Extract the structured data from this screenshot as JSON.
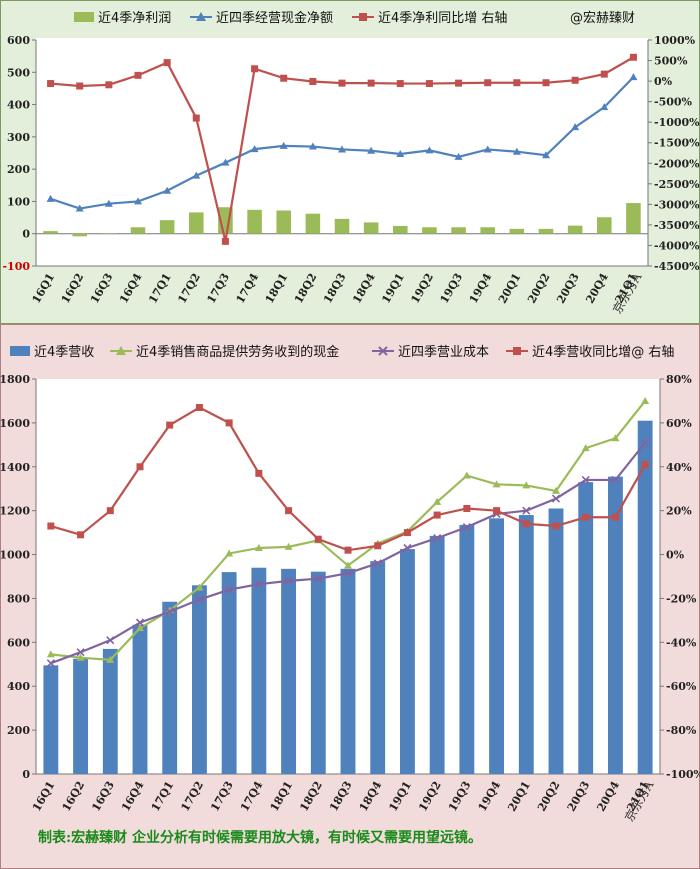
{
  "chart_data": [
    {
      "type": "bar",
      "categories": [
        "16Q1",
        "16Q2",
        "16Q3",
        "16Q4",
        "17Q1",
        "17Q2",
        "17Q3",
        "17Q4",
        "18Q1",
        "18Q2",
        "18Q3",
        "18Q4",
        "19Q1",
        "19Q2",
        "19Q3",
        "19Q4",
        "20Q1",
        "20Q2",
        "20Q3",
        "20Q4",
        "21Q1"
      ],
      "ylim": [
        -100,
        600
      ],
      "yticks": [
        "-100",
        "0",
        "100",
        "200",
        "300",
        "400",
        "500",
        "600"
      ],
      "y2lim": [
        -4500,
        1000
      ],
      "y2ticks": [
        "-4500%",
        "-4000%",
        "-3500%",
        "-3000%",
        "-2500%",
        "-2000%",
        "-1500%",
        "-1000%",
        "-500%",
        "0%",
        "500%",
        "1000%"
      ],
      "legend_position": "top",
      "watermark": "京东方A",
      "grid": false,
      "series": [
        {
          "name": "近4季净利润",
          "kind": "bar",
          "axis": "left",
          "color": "#9bbb59",
          "values": [
            8,
            -8,
            0,
            20,
            42,
            66,
            82,
            74,
            72,
            62,
            46,
            35,
            24,
            20,
            20,
            20,
            15,
            15,
            25,
            51,
            95
          ]
        },
        {
          "name": "近四季经营现金净额",
          "kind": "line",
          "axis": "left",
          "color": "#4f81bd",
          "values": [
            108,
            78,
            93,
            100,
            133,
            180,
            220,
            262,
            272,
            270,
            261,
            257,
            247,
            258,
            238,
            261,
            254,
            243,
            330,
            392,
            485
          ]
        },
        {
          "name": "近4季净利同比增 右轴",
          "kind": "line",
          "axis": "right",
          "color": "#c0504d",
          "values": [
            -60,
            -120,
            -90,
            140,
            450,
            -900,
            -3900,
            300,
            70,
            -10,
            -50,
            -50,
            -60,
            -60,
            -50,
            -40,
            -40,
            -40,
            20,
            170,
            580
          ]
        }
      ],
      "extra_legend": "@宏赫臻财"
    },
    {
      "type": "bar",
      "categories": [
        "16Q1",
        "16Q2",
        "16Q3",
        "16Q4",
        "17Q1",
        "17Q2",
        "17Q3",
        "17Q4",
        "18Q1",
        "18Q2",
        "18Q3",
        "18Q4",
        "19Q1",
        "19Q2",
        "19Q3",
        "19Q4",
        "20Q1",
        "20Q2",
        "20Q3",
        "20Q4",
        "21Q1"
      ],
      "ylim": [
        0,
        1800
      ],
      "yticks": [
        "0",
        "200",
        "400",
        "600",
        "800",
        "1000",
        "1200",
        "1400",
        "1600",
        "1800"
      ],
      "y2lim": [
        -100,
        80
      ],
      "y2ticks": [
        "-100%",
        "-80%",
        "-60%",
        "-40%",
        "-20%",
        "0%",
        "20%",
        "40%",
        "60%",
        "80%"
      ],
      "legend_position": "top",
      "watermark": "京东方A",
      "grid": false,
      "series": [
        {
          "name": "近4季营收",
          "kind": "bar",
          "axis": "left",
          "color": "#4f81bd",
          "values": [
            495,
            525,
            570,
            680,
            785,
            860,
            920,
            940,
            935,
            922,
            935,
            970,
            1025,
            1085,
            1135,
            1165,
            1180,
            1210,
            1330,
            1355,
            1610
          ]
        },
        {
          "name": "近4季销售商品提供劳务收到的现金",
          "kind": "line",
          "axis": "left",
          "color": "#9bbb59",
          "values": [
            545,
            530,
            520,
            665,
            745,
            850,
            1005,
            1030,
            1035,
            1065,
            950,
            1050,
            1105,
            1240,
            1360,
            1320,
            1315,
            1290,
            1485,
            1530,
            1700
          ]
        },
        {
          "name": "近四季营业成本",
          "kind": "line",
          "axis": "left",
          "color": "#8064a2",
          "values": [
            505,
            555,
            610,
            690,
            740,
            795,
            840,
            865,
            880,
            890,
            915,
            960,
            1030,
            1075,
            1125,
            1185,
            1200,
            1255,
            1340,
            1340,
            1510
          ]
        },
        {
          "name": "近4季营收同比增@ 右轴",
          "kind": "line",
          "axis": "right",
          "color": "#c0504d",
          "values": [
            13,
            9,
            20,
            40,
            59,
            67,
            60,
            37,
            20,
            7,
            2,
            4,
            10,
            18,
            21,
            20,
            14,
            13,
            17,
            17,
            41
          ]
        }
      ],
      "footer": "制表:宏赫臻财    企业分析有时候需要用放大镜，有时候又需要用望远镜。"
    }
  ]
}
